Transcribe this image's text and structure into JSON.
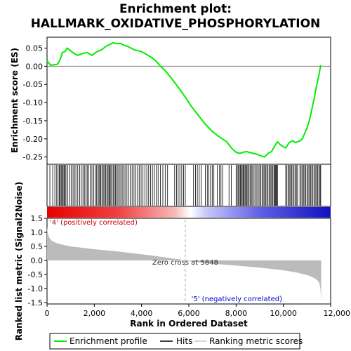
{
  "chart_data": {
    "type": "line",
    "title_line1": "Enrichment plot:",
    "title_line2": "HALLMARK_OXIDATIVE_PHOSPHORYLATION",
    "es_ylabel": "Enrichment score (ES)",
    "metric_ylabel": "Ranked list metric (Signal2Noise)",
    "xlabel": "Rank in Ordered Dataset",
    "xlim": [
      0,
      12000
    ],
    "es_ylim": [
      -0.27,
      0.08
    ],
    "metric_ylim": [
      -1.55,
      1.5
    ],
    "x_ticks": [
      "0",
      "2,000",
      "4,000",
      "6,000",
      "8,000",
      "10,000",
      "12,000"
    ],
    "x_tick_values": [
      0,
      2000,
      4000,
      6000,
      8000,
      10000,
      12000
    ],
    "es_ticks": [
      "0.05",
      "0.00",
      "-0.05",
      "-0.10",
      "-0.15",
      "-0.20",
      "-0.25"
    ],
    "es_tick_values": [
      0.05,
      0.0,
      -0.05,
      -0.1,
      -0.15,
      -0.2,
      -0.25
    ],
    "metric_ticks": [
      "1.5",
      "1.0",
      "0.5",
      "0.0",
      "-0.5",
      "-1.0",
      "-1.5"
    ],
    "metric_tick_values": [
      1.5,
      1.0,
      0.5,
      0.0,
      -0.5,
      -1.0,
      -1.5
    ],
    "n_genes": 11600,
    "zero_cross": 5848,
    "zero_cross_label": "Zero cross at 5848",
    "pos_label": "'4' (positively correlated)",
    "neg_label": "'5' (negatively correlated)",
    "legend": [
      "Enrichment profile",
      "Hits",
      "Ranking metric scores"
    ],
    "colors": {
      "es_line": "#00ee00",
      "hits": "#000000",
      "metric_fill": "#bbbbbb",
      "pos_label": "#cc0000",
      "neg_label": "#0000cc",
      "zero_line": "#aaaaaa",
      "legend_ranking": "#c8c8c8"
    },
    "es_profile": {
      "x": [
        0,
        150,
        300,
        450,
        550,
        650,
        750,
        850,
        950,
        1050,
        1150,
        1300,
        1500,
        1700,
        1900,
        2100,
        2300,
        2500,
        2650,
        2800,
        2950,
        3100,
        3250,
        3400,
        3550,
        3700,
        3850,
        4000,
        4200,
        4400,
        4600,
        4800,
        5000,
        5200,
        5400,
        5600,
        5848,
        6100,
        6400,
        6700,
        7000,
        7300,
        7600,
        7800,
        8000,
        8150,
        8300,
        8450,
        8600,
        8750,
        8900,
        9050,
        9200,
        9350,
        9500,
        9650,
        9750,
        9850,
        9950,
        10100,
        10250,
        10400,
        10500,
        10600,
        10700,
        10800,
        10900,
        11000,
        11100,
        11200,
        11300,
        11400,
        11500,
        11580
      ],
      "y": [
        0.015,
        0.003,
        0.004,
        0.006,
        0.018,
        0.038,
        0.04,
        0.05,
        0.045,
        0.04,
        0.035,
        0.03,
        0.035,
        0.038,
        0.03,
        0.04,
        0.045,
        0.055,
        0.06,
        0.065,
        0.062,
        0.063,
        0.058,
        0.055,
        0.05,
        0.045,
        0.043,
        0.04,
        0.033,
        0.025,
        0.015,
        0.0,
        -0.012,
        -0.028,
        -0.045,
        -0.062,
        -0.085,
        -0.11,
        -0.135,
        -0.16,
        -0.18,
        -0.195,
        -0.208,
        -0.225,
        -0.237,
        -0.24,
        -0.237,
        -0.235,
        -0.238,
        -0.24,
        -0.243,
        -0.247,
        -0.25,
        -0.24,
        -0.235,
        -0.218,
        -0.208,
        -0.215,
        -0.22,
        -0.225,
        -0.21,
        -0.205,
        -0.21,
        -0.208,
        -0.206,
        -0.2,
        -0.185,
        -0.17,
        -0.15,
        -0.12,
        -0.09,
        -0.055,
        -0.025,
        0.003
      ]
    },
    "metric": {
      "x": [
        0,
        30,
        100,
        200,
        400,
        700,
        1000,
        1500,
        2000,
        2500,
        3000,
        3500,
        4000,
        4500,
        5000,
        5500,
        5848,
        6200,
        6800,
        7500,
        8000,
        8500,
        9000,
        9500,
        10000,
        10500,
        10800,
        11000,
        11200,
        11350,
        11450,
        11520,
        11570,
        11600
      ],
      "y": [
        1.2,
        0.98,
        0.8,
        0.7,
        0.62,
        0.55,
        0.5,
        0.45,
        0.4,
        0.36,
        0.32,
        0.27,
        0.22,
        0.17,
        0.11,
        0.05,
        0.0,
        -0.05,
        -0.1,
        -0.15,
        -0.18,
        -0.22,
        -0.26,
        -0.3,
        -0.35,
        -0.42,
        -0.48,
        -0.52,
        -0.58,
        -0.65,
        -0.72,
        -0.8,
        -1.0,
        -1.45
      ]
    },
    "hits": [
      120,
      240,
      330,
      410,
      470,
      520,
      560,
      600,
      640,
      680,
      720,
      760,
      800,
      870,
      950,
      1020,
      1100,
      1160,
      1220,
      1300,
      1380,
      1450,
      1520,
      1580,
      1640,
      1700,
      1760,
      1830,
      1900,
      1970,
      2040,
      2100,
      2160,
      2200,
      2240,
      2280,
      2330,
      2380,
      2430,
      2480,
      2530,
      2580,
      2620,
      2660,
      2700,
      2750,
      2800,
      2850,
      2900,
      2950,
      3000,
      3060,
      3120,
      3180,
      3240,
      3300,
      3380,
      3450,
      3520,
      3600,
      3680,
      3760,
      3830,
      3900,
      3980,
      4060,
      4140,
      4220,
      4300,
      4380,
      4460,
      4540,
      4620,
      4700,
      4800,
      4900,
      5000,
      5100,
      5400,
      5480,
      5550,
      5620,
      5700,
      5780,
      5850,
      6200,
      6280,
      6360,
      6440,
      6520,
      6700,
      6780,
      6850,
      6920,
      6990,
      7060,
      7200,
      7300,
      7360,
      7430,
      7700,
      7800,
      8000,
      8050,
      8100,
      8140,
      8180,
      8220,
      8260,
      8300,
      8340,
      8380,
      8420,
      8460,
      8500,
      8550,
      8600,
      8650,
      8700,
      8760,
      8820,
      8880,
      8940,
      9000,
      9050,
      9100,
      9150,
      9200,
      9250,
      9300,
      9350,
      9400,
      9450,
      9500,
      9550,
      9600,
      9630,
      9660,
      9690,
      9720,
      9750,
      10100,
      10150,
      10200,
      10250,
      10300,
      10350,
      10400,
      10450,
      10500,
      10550,
      10600,
      10700,
      10750,
      10800,
      10850,
      10900,
      10950,
      11000,
      11050,
      11100,
      11150,
      11200,
      11250,
      11300,
      11350,
      11400,
      11450,
      11500,
      11550,
      11580
    ]
  }
}
